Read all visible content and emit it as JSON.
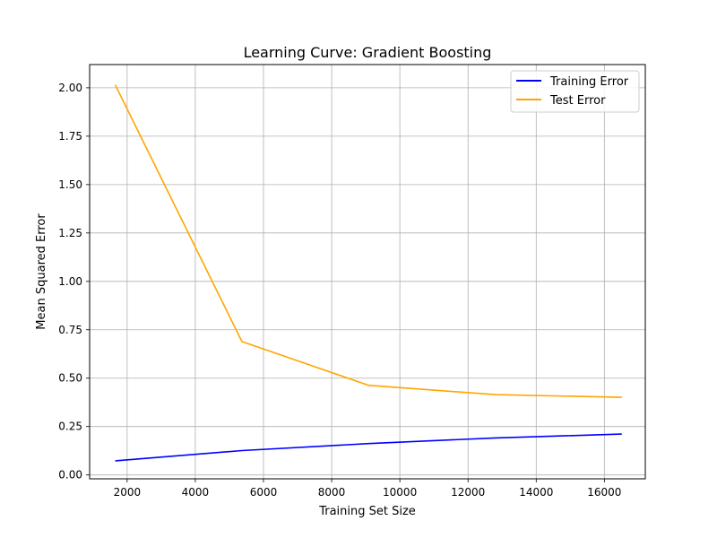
{
  "chart_data": {
    "type": "line",
    "title": "Learning Curve: Gradient Boosting",
    "xlabel": "Training Set Size",
    "ylabel": "Mean Squared Error",
    "xlim": [
      900,
      17200
    ],
    "ylim": [
      -0.02,
      2.12
    ],
    "x_ticks": [
      2000,
      4000,
      6000,
      8000,
      10000,
      12000,
      14000,
      16000
    ],
    "y_ticks": [
      0.0,
      0.25,
      0.5,
      0.75,
      1.0,
      1.25,
      1.5,
      1.75,
      2.0
    ],
    "y_tick_labels": [
      "0.00",
      "0.25",
      "0.50",
      "0.75",
      "1.00",
      "1.25",
      "1.50",
      "1.75",
      "2.00"
    ],
    "grid": true,
    "legend_position": "top-right",
    "x": [
      1651,
      5366,
      9081,
      12796,
      16511
    ],
    "series": [
      {
        "name": "Training Error",
        "color": "#0000ff",
        "values": [
          0.073,
          0.126,
          0.162,
          0.191,
          0.211
        ]
      },
      {
        "name": "Test Error",
        "color": "#ffa500",
        "values": [
          2.015,
          0.689,
          0.463,
          0.415,
          0.401
        ]
      }
    ]
  }
}
